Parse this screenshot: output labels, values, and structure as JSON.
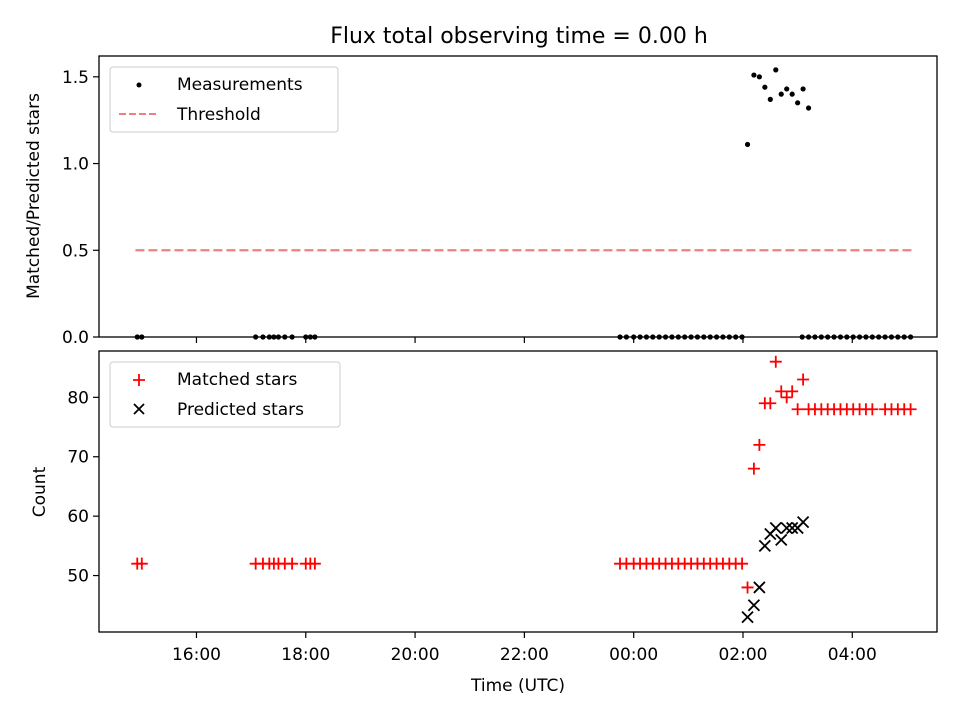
{
  "title": "Flux total observing time = 0.00 h",
  "colors": {
    "measurement": "#000000",
    "threshold": "#f08080",
    "matched": "#ff0000",
    "predicted": "#000000"
  },
  "chart_data": [
    {
      "type": "scatter",
      "ylabel": "Matched/Predicted stars",
      "ylim": [
        0,
        1.62
      ],
      "yticks": [
        "0.0",
        "0.5",
        "1.0",
        "1.5"
      ],
      "ytick_values": [
        0,
        0.5,
        1.0,
        1.5
      ],
      "legend": {
        "placement": "top-left",
        "entries": [
          "Measurements",
          "Threshold"
        ]
      },
      "series": [
        {
          "name": "Measurements",
          "marker": "dot",
          "points": [
            [
              "14:55",
              0
            ],
            [
              "15:00",
              0
            ],
            [
              "17:05",
              0
            ],
            [
              "17:13",
              0
            ],
            [
              "17:20",
              0
            ],
            [
              "17:25",
              0
            ],
            [
              "17:30",
              0
            ],
            [
              "17:37",
              0
            ],
            [
              "17:45",
              0
            ],
            [
              "18:00",
              0
            ],
            [
              "18:05",
              0
            ],
            [
              "18:10",
              0
            ],
            [
              "23:45",
              0
            ],
            [
              "23:52",
              0
            ],
            [
              "24:00",
              0
            ],
            [
              "24:07",
              0
            ],
            [
              "24:14",
              0
            ],
            [
              "24:21",
              0
            ],
            [
              "24:28",
              0
            ],
            [
              "24:35",
              0
            ],
            [
              "24:42",
              0
            ],
            [
              "24:49",
              0
            ],
            [
              "24:56",
              0
            ],
            [
              "25:03",
              0
            ],
            [
              "25:10",
              0
            ],
            [
              "25:17",
              0
            ],
            [
              "25:24",
              0
            ],
            [
              "25:31",
              0
            ],
            [
              "25:38",
              0
            ],
            [
              "25:45",
              0
            ],
            [
              "25:52",
              0
            ],
            [
              "25:59",
              0
            ],
            [
              "26:05",
              1.11
            ],
            [
              "26:12",
              1.51
            ],
            [
              "26:18",
              1.5
            ],
            [
              "26:24",
              1.44
            ],
            [
              "26:30",
              1.37
            ],
            [
              "26:36",
              1.54
            ],
            [
              "26:42",
              1.4
            ],
            [
              "26:48",
              1.43
            ],
            [
              "26:54",
              1.4
            ],
            [
              "27:00",
              1.35
            ],
            [
              "27:06",
              1.43
            ],
            [
              "27:12",
              1.32
            ],
            [
              "27:05",
              0
            ],
            [
              "27:12",
              0
            ],
            [
              "27:19",
              0
            ],
            [
              "27:26",
              0
            ],
            [
              "27:33",
              0
            ],
            [
              "27:40",
              0
            ],
            [
              "27:47",
              0
            ],
            [
              "27:54",
              0
            ],
            [
              "28:01",
              0
            ],
            [
              "28:08",
              0
            ],
            [
              "28:15",
              0
            ],
            [
              "28:22",
              0
            ],
            [
              "28:29",
              0
            ],
            [
              "28:36",
              0
            ],
            [
              "28:43",
              0
            ],
            [
              "28:50",
              0
            ],
            [
              "28:57",
              0
            ],
            [
              "29:04",
              0
            ]
          ]
        },
        {
          "name": "Threshold",
          "style": "dashed",
          "x": [
            "14:53",
            "29:05"
          ],
          "values": [
            0.5,
            0.5
          ]
        }
      ]
    },
    {
      "type": "scatter",
      "xlabel": "Time (UTC)",
      "ylabel": "Count",
      "xlim": [
        "14:13",
        "29:33"
      ],
      "ylim": [
        40.5,
        87.8
      ],
      "xticks": [
        "16:00",
        "18:00",
        "20:00",
        "22:00",
        "00:00",
        "02:00",
        "04:00"
      ],
      "xtick_values": [
        "16:00",
        "18:00",
        "20:00",
        "22:00",
        "24:00",
        "26:00",
        "28:00"
      ],
      "yticks": [
        "50",
        "60",
        "70",
        "80"
      ],
      "ytick_values": [
        50,
        60,
        70,
        80
      ],
      "legend": {
        "placement": "top-left",
        "entries": [
          "Matched stars",
          "Predicted stars"
        ]
      },
      "series": [
        {
          "name": "Matched stars",
          "marker": "plus",
          "points": [
            [
              "14:55",
              52
            ],
            [
              "15:00",
              52
            ],
            [
              "17:05",
              52
            ],
            [
              "17:13",
              52
            ],
            [
              "17:20",
              52
            ],
            [
              "17:25",
              52
            ],
            [
              "17:30",
              52
            ],
            [
              "17:37",
              52
            ],
            [
              "17:45",
              52
            ],
            [
              "18:00",
              52
            ],
            [
              "18:05",
              52
            ],
            [
              "18:10",
              52
            ],
            [
              "23:45",
              52
            ],
            [
              "23:52",
              52
            ],
            [
              "24:00",
              52
            ],
            [
              "24:07",
              52
            ],
            [
              "24:14",
              52
            ],
            [
              "24:21",
              52
            ],
            [
              "24:28",
              52
            ],
            [
              "24:35",
              52
            ],
            [
              "24:42",
              52
            ],
            [
              "24:49",
              52
            ],
            [
              "24:56",
              52
            ],
            [
              "25:03",
              52
            ],
            [
              "25:10",
              52
            ],
            [
              "25:17",
              52
            ],
            [
              "25:24",
              52
            ],
            [
              "25:31",
              52
            ],
            [
              "25:38",
              52
            ],
            [
              "25:45",
              52
            ],
            [
              "25:52",
              52
            ],
            [
              "25:59",
              52
            ],
            [
              "26:05",
              48
            ],
            [
              "26:12",
              68
            ],
            [
              "26:18",
              72
            ],
            [
              "26:24",
              79
            ],
            [
              "26:30",
              79
            ],
            [
              "26:36",
              86
            ],
            [
              "26:42",
              81
            ],
            [
              "26:48",
              80
            ],
            [
              "26:54",
              81
            ],
            [
              "27:00",
              78
            ],
            [
              "27:06",
              83
            ],
            [
              "27:12",
              78
            ],
            [
              "27:19",
              78
            ],
            [
              "27:26",
              78
            ],
            [
              "27:33",
              78
            ],
            [
              "27:40",
              78
            ],
            [
              "27:47",
              78
            ],
            [
              "27:54",
              78
            ],
            [
              "28:01",
              78
            ],
            [
              "28:08",
              78
            ],
            [
              "28:15",
              78
            ],
            [
              "28:22",
              78
            ],
            [
              "28:36",
              78
            ],
            [
              "28:43",
              78
            ],
            [
              "28:50",
              78
            ],
            [
              "28:57",
              78
            ],
            [
              "29:04",
              78
            ]
          ]
        },
        {
          "name": "Predicted stars",
          "marker": "x",
          "points": [
            [
              "26:05",
              43
            ],
            [
              "26:12",
              45
            ],
            [
              "26:18",
              48
            ],
            [
              "26:24",
              55
            ],
            [
              "26:30",
              57
            ],
            [
              "26:36",
              58
            ],
            [
              "26:42",
              56
            ],
            [
              "26:48",
              58
            ],
            [
              "26:54",
              58
            ],
            [
              "27:00",
              58
            ],
            [
              "27:06",
              59
            ]
          ]
        }
      ]
    }
  ]
}
